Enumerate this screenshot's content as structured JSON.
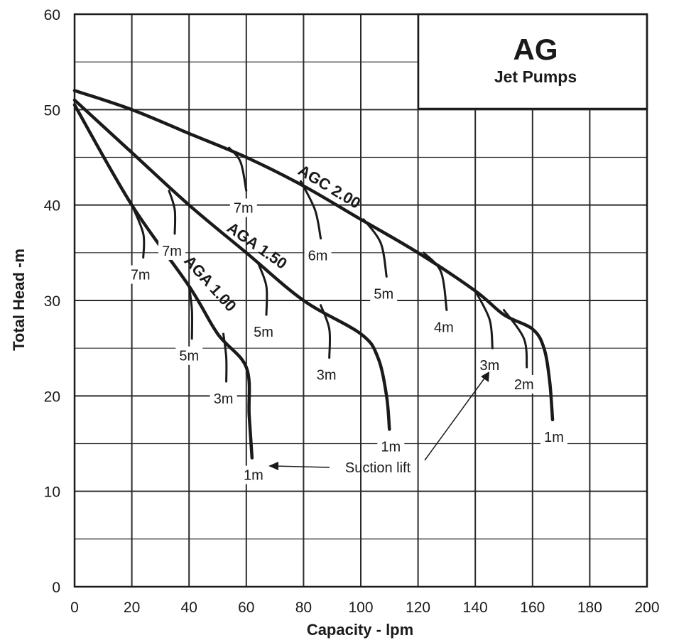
{
  "chart_data": {
    "type": "line",
    "title": "AG",
    "subtitle": "Jet Pumps",
    "xlabel": "Capacity - lpm",
    "ylabel": "Total Head -m",
    "xlim": [
      0,
      200
    ],
    "ylim": [
      0,
      60
    ],
    "x_ticks": [
      "0",
      "20",
      "40",
      "60",
      "80",
      "100",
      "120",
      "140",
      "160",
      "180",
      "200"
    ],
    "y_ticks": [
      "0",
      "10",
      "20",
      "30",
      "40",
      "50",
      "60"
    ],
    "grid": true,
    "series": [
      {
        "name": "AGC 2.00",
        "points": [
          [
            0,
            52
          ],
          [
            20,
            50
          ],
          [
            40,
            47.5
          ],
          [
            60,
            45
          ],
          [
            80,
            42
          ],
          [
            100,
            38.5
          ],
          [
            120,
            35
          ],
          [
            140,
            31
          ],
          [
            150,
            28.5
          ],
          [
            160,
            27
          ],
          [
            164,
            25
          ],
          [
            166,
            21.5
          ],
          [
            167,
            17.5
          ]
        ]
      },
      {
        "name": "AGA 1.50",
        "points": [
          [
            0,
            51
          ],
          [
            20,
            45.5
          ],
          [
            40,
            40
          ],
          [
            60,
            35
          ],
          [
            80,
            30
          ],
          [
            100,
            26.5
          ],
          [
            106,
            24
          ],
          [
            109,
            20
          ],
          [
            110,
            16.5
          ]
        ]
      },
      {
        "name": "AGA 1.00",
        "points": [
          [
            0,
            50.5
          ],
          [
            20,
            40
          ],
          [
            40,
            31.5
          ],
          [
            50,
            26.5
          ],
          [
            60,
            23
          ],
          [
            61,
            18
          ],
          [
            62,
            13.5
          ]
        ]
      }
    ],
    "suction_lift_branches": [
      {
        "series": "AGC 2.00",
        "label": "7m",
        "points": [
          [
            54,
            46
          ],
          [
            58,
            44.5
          ],
          [
            60,
            41.5
          ]
        ]
      },
      {
        "series": "AGC 2.00",
        "label": "6m",
        "points": [
          [
            79,
            42.5
          ],
          [
            84,
            39.5
          ],
          [
            86,
            36.5
          ]
        ]
      },
      {
        "series": "AGC 2.00",
        "label": "5m",
        "points": [
          [
            101,
            38.5
          ],
          [
            107,
            36
          ],
          [
            109,
            32.5
          ]
        ]
      },
      {
        "series": "AGC 2.00",
        "label": "4m",
        "points": [
          [
            122,
            35
          ],
          [
            128,
            33
          ],
          [
            130,
            29
          ]
        ]
      },
      {
        "series": "AGC 2.00",
        "label": "3m",
        "points": [
          [
            140,
            31
          ],
          [
            145,
            28
          ],
          [
            146,
            25
          ]
        ]
      },
      {
        "series": "AGC 2.00",
        "label": "2m",
        "points": [
          [
            150,
            29
          ],
          [
            157,
            26
          ],
          [
            158,
            23
          ]
        ]
      },
      {
        "series": "AGA 1.50",
        "label": "7m",
        "points": [
          [
            33,
            41.5
          ],
          [
            35,
            39.5
          ],
          [
            35,
            37
          ]
        ]
      },
      {
        "series": "AGA 1.50",
        "label": "5m",
        "points": [
          [
            64,
            34
          ],
          [
            67,
            31.5
          ],
          [
            67,
            28.5
          ]
        ]
      },
      {
        "series": "AGA 1.50",
        "label": "3m",
        "points": [
          [
            86,
            29.5
          ],
          [
            89,
            27
          ],
          [
            89,
            24
          ]
        ]
      },
      {
        "series": "AGA 1.00",
        "label": "7m",
        "points": [
          [
            20,
            40
          ],
          [
            24,
            37
          ],
          [
            24,
            34.5
          ]
        ]
      },
      {
        "series": "AGA 1.00",
        "label": "5m",
        "points": [
          [
            40,
            31.5
          ],
          [
            41,
            29
          ],
          [
            41,
            26
          ]
        ]
      },
      {
        "series": "AGA 1.00",
        "label": "3m",
        "points": [
          [
            52,
            26.5
          ],
          [
            53,
            24
          ],
          [
            53,
            21.5
          ]
        ]
      }
    ],
    "endpoint_labels": [
      {
        "series": "AGC 2.00",
        "label": "1m"
      },
      {
        "series": "AGA 1.50",
        "label": "1m"
      },
      {
        "series": "AGA 1.00",
        "label": "1m"
      }
    ],
    "annotation": "Suction lift"
  }
}
